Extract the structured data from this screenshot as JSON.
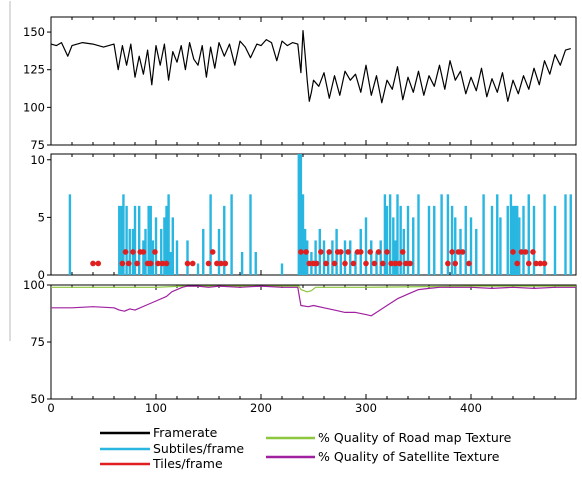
{
  "chart_data": [
    {
      "type": "line",
      "xlim": [
        0,
        500
      ],
      "ylim": [
        75,
        160
      ],
      "yticks": [
        "150",
        "125",
        "100",
        "75"
      ],
      "ytick_values": [
        150,
        125,
        100,
        75
      ],
      "series": [
        {
          "name": "Framerate",
          "color": "#000000",
          "x": [
            0,
            5,
            10,
            16,
            20,
            30,
            40,
            50,
            60,
            64,
            68,
            72,
            76,
            80,
            84,
            88,
            92,
            96,
            100,
            104,
            108,
            112,
            116,
            120,
            124,
            128,
            132,
            136,
            140,
            144,
            148,
            152,
            156,
            160,
            165,
            170,
            175,
            180,
            185,
            190,
            196,
            200,
            205,
            210,
            215,
            220,
            225,
            230,
            235,
            238,
            240,
            242,
            244,
            246,
            248,
            250,
            255,
            260,
            265,
            270,
            275,
            280,
            285,
            290,
            295,
            300,
            305,
            310,
            315,
            320,
            325,
            330,
            335,
            340,
            345,
            350,
            355,
            360,
            365,
            370,
            375,
            380,
            385,
            390,
            395,
            400,
            405,
            410,
            415,
            420,
            425,
            430,
            435,
            440,
            445,
            450,
            455,
            460,
            465,
            470,
            475,
            480,
            485,
            490,
            495
          ],
          "values": [
            142,
            141,
            143,
            134,
            141,
            143,
            142,
            140,
            142,
            125,
            141,
            128,
            142,
            120,
            134,
            122,
            138,
            115,
            141,
            128,
            142,
            118,
            137,
            130,
            141,
            125,
            143,
            132,
            128,
            141,
            120,
            140,
            126,
            143,
            134,
            142,
            128,
            144,
            140,
            133,
            142,
            141,
            145,
            143,
            131,
            144,
            141,
            143,
            142,
            123,
            151,
            135,
            118,
            104,
            110,
            118,
            114,
            123,
            106,
            121,
            108,
            124,
            118,
            122,
            110,
            128,
            108,
            121,
            103,
            118,
            112,
            127,
            105,
            120,
            110,
            124,
            108,
            121,
            114,
            128,
            112,
            131,
            118,
            124,
            109,
            120,
            111,
            126,
            107,
            119,
            110,
            123,
            104,
            118,
            109,
            121,
            112,
            126,
            115,
            131,
            122,
            135,
            128,
            138,
            139
          ]
        }
      ]
    },
    {
      "type": "bar",
      "xlim": [
        0,
        500
      ],
      "ylim": [
        0,
        10.5
      ],
      "yticks": [
        "10",
        "5",
        "0"
      ],
      "ytick_values": [
        10,
        5,
        0
      ],
      "series": [
        {
          "name": "Subtiles/frame",
          "color": "#29b6e0",
          "x": [
            18,
            65,
            67,
            69,
            72,
            75,
            78,
            80,
            84,
            88,
            90,
            93,
            95,
            97,
            100,
            105,
            108,
            110,
            112,
            114,
            116,
            120,
            130,
            140,
            145,
            152,
            160,
            165,
            172,
            182,
            190,
            195,
            220,
            236,
            238,
            240,
            242,
            244,
            248,
            252,
            256,
            260,
            264,
            268,
            272,
            276,
            280,
            285,
            290,
            295,
            300,
            305,
            310,
            314,
            318,
            320,
            323,
            326,
            328,
            330,
            333,
            336,
            340,
            345,
            350,
            360,
            365,
            372,
            378,
            382,
            385,
            390,
            395,
            400,
            405,
            412,
            420,
            425,
            428,
            435,
            438,
            440,
            442,
            444,
            446,
            450,
            455,
            460,
            470,
            480,
            490,
            495
          ],
          "values": [
            7,
            6,
            6,
            7,
            6,
            4,
            4,
            6,
            6,
            3,
            4,
            6,
            6,
            3,
            5,
            4,
            5,
            6,
            7,
            2,
            5,
            3,
            3,
            1,
            4,
            7,
            4,
            6,
            7,
            2,
            7,
            2,
            1,
            10.5,
            10.5,
            7,
            4,
            3,
            2,
            3,
            4,
            3,
            2,
            3,
            4,
            2,
            3,
            3,
            2,
            4,
            5,
            3,
            2,
            3,
            7,
            6,
            7,
            5,
            3,
            7,
            6,
            4,
            6,
            5,
            7,
            6,
            6,
            7,
            7,
            6,
            5,
            4,
            6,
            5,
            4,
            7,
            6,
            7,
            5,
            6,
            7,
            6,
            6,
            6,
            5,
            6,
            7,
            6,
            7,
            6,
            7,
            7
          ]
        },
        {
          "name": "Tiles/frame",
          "color": "#e02020",
          "x": [
            40,
            45,
            68,
            71,
            74,
            78,
            82,
            85,
            88,
            92,
            95,
            99,
            102,
            106,
            110,
            130,
            135,
            150,
            154,
            158,
            162,
            166,
            238,
            243,
            246,
            250,
            253,
            257,
            262,
            265,
            270,
            273,
            276,
            280,
            283,
            288,
            292,
            295,
            300,
            304,
            308,
            312,
            316,
            320,
            324,
            328,
            332,
            335,
            338,
            342,
            378,
            382,
            385,
            388,
            392,
            398,
            440,
            444,
            448,
            452,
            455,
            459,
            462,
            466,
            470
          ],
          "values": [
            1,
            1,
            1,
            2,
            1,
            2,
            1,
            2,
            2,
            1,
            1,
            2,
            1,
            1,
            1,
            1,
            1,
            1,
            2,
            1,
            1,
            1,
            2,
            2,
            1,
            1,
            1,
            2,
            1,
            2,
            1,
            2,
            2,
            1,
            2,
            1,
            2,
            2,
            1,
            2,
            1,
            2,
            1,
            2,
            1,
            1,
            1,
            2,
            1,
            1,
            1,
            2,
            1,
            2,
            2,
            1,
            2,
            1,
            2,
            2,
            1,
            2,
            1,
            1,
            1
          ]
        }
      ]
    },
    {
      "type": "line",
      "xlim": [
        0,
        500
      ],
      "ylim": [
        50,
        100
      ],
      "yticks": [
        "100",
        "75",
        "50"
      ],
      "ytick_values": [
        100,
        75,
        50
      ],
      "xticks": [
        "0",
        "100",
        "200",
        "300",
        "400"
      ],
      "xtick_values": [
        0,
        100,
        200,
        300,
        400
      ],
      "series": [
        {
          "name": "% Quality of Road map Texture",
          "color": "#8dc63f",
          "x": [
            0,
            100,
            125,
            200,
            236,
            238,
            244,
            248,
            252,
            300,
            400,
            500
          ],
          "values": [
            99,
            99,
            99.5,
            99.5,
            99.5,
            98,
            97,
            97.5,
            99,
            99,
            99.5,
            99.5
          ]
        },
        {
          "name": "% Quality of Satellite Texture",
          "color": "#a020a0",
          "x": [
            0,
            20,
            40,
            60,
            65,
            70,
            75,
            80,
            90,
            100,
            110,
            115,
            120,
            125,
            130,
            140,
            150,
            160,
            180,
            200,
            220,
            235,
            238,
            245,
            250,
            260,
            270,
            280,
            290,
            300,
            305,
            310,
            320,
            330,
            340,
            350,
            360,
            370,
            380,
            400,
            420,
            440,
            460,
            480,
            500
          ],
          "values": [
            90,
            90,
            90.5,
            90,
            89,
            88.5,
            89.5,
            89,
            91,
            93,
            95,
            97,
            98,
            99,
            99.5,
            99.5,
            99,
            99.5,
            99,
            99.5,
            99,
            99,
            91,
            90.5,
            91,
            90,
            89,
            88,
            88,
            87,
            86.5,
            88,
            91,
            94,
            96,
            98,
            98.5,
            99,
            99,
            99,
            98.5,
            99,
            98.5,
            99,
            99
          ]
        }
      ]
    }
  ],
  "legend": {
    "entries": [
      {
        "label": "Framerate",
        "color": "#000000"
      },
      {
        "label": "Subtiles/frame",
        "color": "#29b6e0"
      },
      {
        "label": "Tiles/frame",
        "color": "#e02020"
      },
      {
        "label": "% Quality of Road map Texture",
        "color": "#8dc63f"
      },
      {
        "label": "% Quality of Satellite Texture",
        "color": "#a020a0"
      }
    ]
  }
}
